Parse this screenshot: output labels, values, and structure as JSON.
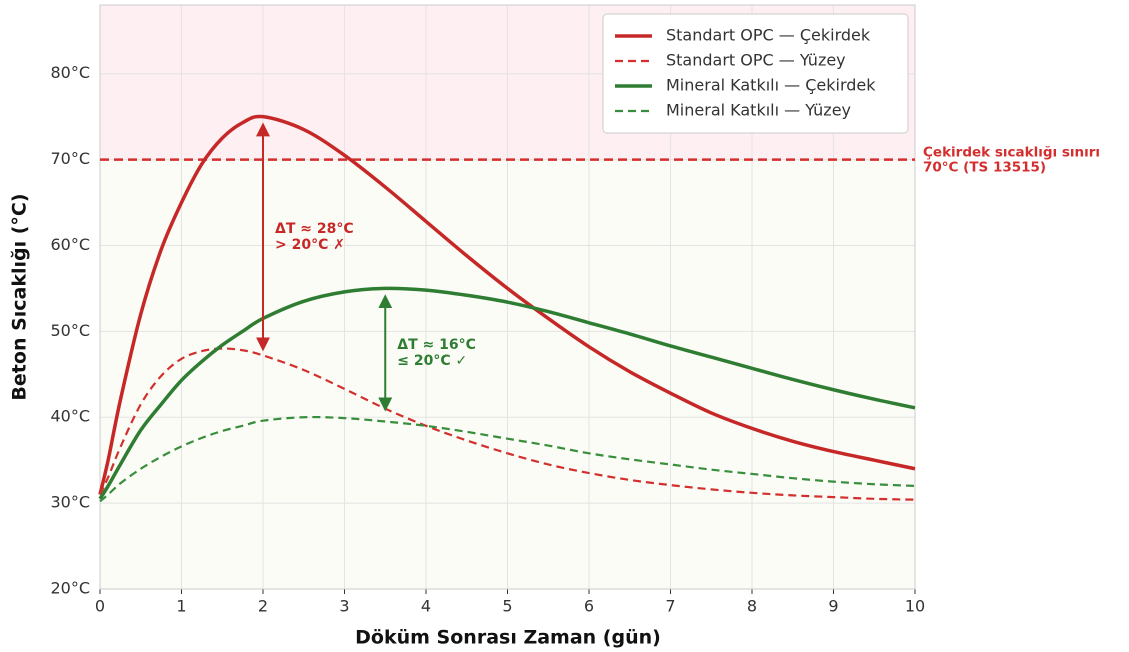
{
  "chart_data": {
    "type": "line",
    "xlabel": "Döküm Sonrası Zaman (gün)",
    "ylabel": "Beton Sıcaklığı (°C)",
    "x": [
      0,
      0.1,
      0.25,
      0.5,
      0.75,
      1,
      1.25,
      1.5,
      1.75,
      2,
      2.5,
      3,
      3.5,
      4,
      4.5,
      5,
      5.5,
      6,
      6.5,
      7,
      7.5,
      8,
      8.5,
      9,
      9.5,
      10
    ],
    "series": [
      {
        "name": "Standart OPC — Çekirdek",
        "color": "#c62828",
        "dash": false,
        "values": [
          31,
          35,
          42,
          52,
          59.5,
          65,
          69.5,
          72.5,
          74.3,
          75,
          73.5,
          70.5,
          66.8,
          62.8,
          58.8,
          55,
          51.5,
          48.2,
          45.3,
          42.8,
          40.5,
          38.7,
          37.2,
          36,
          35,
          34
        ]
      },
      {
        "name": "Standart OPC — Yüzey",
        "color": "#d32f2f",
        "dash": true,
        "values": [
          31,
          33,
          36.5,
          41.5,
          44.8,
          46.8,
          47.7,
          48,
          47.8,
          47.2,
          45.5,
          43.3,
          41,
          39,
          37.3,
          35.8,
          34.5,
          33.5,
          32.7,
          32.1,
          31.6,
          31.2,
          30.9,
          30.7,
          30.5,
          30.4
        ]
      },
      {
        "name": "Mineral Katkılı — Çekirdek",
        "color": "#2e7d32",
        "dash": false,
        "values": [
          30.5,
          32,
          34.5,
          38.5,
          41.5,
          44.3,
          46.5,
          48.4,
          50,
          51.5,
          53.5,
          54.6,
          55,
          54.8,
          54.2,
          53.4,
          52.3,
          51,
          49.7,
          48.3,
          47,
          45.7,
          44.4,
          43.2,
          42.1,
          41.1
        ]
      },
      {
        "name": "Mineral Katkılı — Yüzey",
        "color": "#388e3c",
        "dash": true,
        "values": [
          30.2,
          31,
          32.3,
          34,
          35.4,
          36.6,
          37.6,
          38.4,
          39,
          39.6,
          40,
          39.9,
          39.5,
          39,
          38.3,
          37.5,
          36.7,
          35.8,
          35.1,
          34.5,
          33.9,
          33.4,
          32.9,
          32.5,
          32.2,
          32
        ]
      }
    ],
    "xlim": [
      0,
      10
    ],
    "ylim": [
      20,
      88
    ],
    "xticks": [
      0,
      1,
      2,
      3,
      4,
      5,
      6,
      7,
      8,
      9,
      10
    ],
    "yticks": [
      {
        "value": 20,
        "label": "20°C"
      },
      {
        "value": 30,
        "label": "30°C"
      },
      {
        "value": 40,
        "label": "40°C"
      },
      {
        "value": 50,
        "label": "50°C"
      },
      {
        "value": 60,
        "label": "60°C"
      },
      {
        "value": 70,
        "label": "70°C"
      },
      {
        "value": 80,
        "label": "80°C"
      }
    ],
    "grid": true,
    "legend": "upper right",
    "limit": {
      "value": 70,
      "color": "#d32f2f",
      "lines": [
        "Çekirdek sıcaklığı sınırı",
        "70°C (TS 13515)"
      ]
    },
    "arrows": [
      {
        "x": 2,
        "from": 48,
        "to": 74,
        "color": "#c62828",
        "lines": [
          "ΔT ≈ 28°C",
          "> 20°C ✗"
        ]
      },
      {
        "x": 3.5,
        "from": 41,
        "to": 54,
        "color": "#2e7d32",
        "lines": [
          "ΔT ≈ 16°C",
          "≤ 20°C ✓"
        ]
      }
    ]
  }
}
